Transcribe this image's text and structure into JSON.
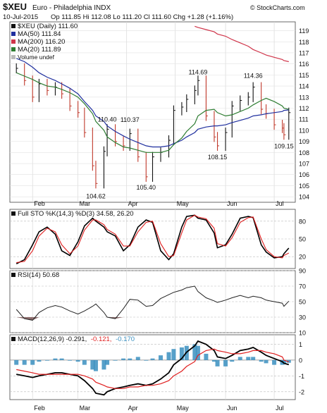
{
  "header": {
    "symbol": "$XEU",
    "name": "Euro - Philadelphia INDX",
    "date": "10-Jul-2015",
    "quote": "Op 111.85  Hi 112.08  Lo 111.20  Cl 111.60  Chg +1.28 (+1.16%)",
    "watermark": "© StockCharts.com"
  },
  "legend": {
    "price": "$XEU (Daily) 111.60",
    "ma50": "MA(50) 111.84",
    "ma200": "MA(200) 116.20",
    "ma20": "MA(20) 111.89",
    "volume": "Volume undef"
  },
  "indicators": {
    "sto": "Full STO %K(14,3) %D(3) 34.58, 26.20",
    "rsi": "RSI(14) 50.68",
    "macd_label": "MACD(12,26,9) -0.291,",
    "macd_signal": "-0.121,",
    "macd_hist": "-0.170"
  },
  "months": [
    "Feb",
    "Mar",
    "Apr",
    "May",
    "Jun",
    "Jul"
  ],
  "colors": {
    "price_bar_up": "#111111",
    "price_bar_down": "#c0392b",
    "ma50": "#1f2f9e",
    "ma200": "#d0354a",
    "ma20": "#2e7d32",
    "sto_k": "#000000",
    "sto_d": "#e02020",
    "rsi_fill": "#8b6b6b",
    "macd_hist": "#3a8fc0",
    "macd_signal": "#e02020"
  },
  "chart_data": [
    {
      "type": "line",
      "title": "$XEU (Daily) 111.60",
      "y_ticks": [
        104,
        105,
        106,
        107,
        108,
        109,
        110,
        111,
        112,
        113,
        114,
        115,
        116,
        117,
        118,
        119
      ],
      "ylim": [
        103.5,
        119.8
      ],
      "annotations": [
        {
          "label": "104.62",
          "x": "2015-03-13",
          "y": 104.62
        },
        {
          "label": "110.40",
          "x": "2015-03-20",
          "y": 110.4
        },
        {
          "label": "110.37",
          "x": "2015-04-03",
          "y": 110.37
        },
        {
          "label": "105.40",
          "x": "2015-04-13",
          "y": 105.4
        },
        {
          "label": "114.69",
          "x": "2015-05-15",
          "y": 114.69
        },
        {
          "label": "108.15",
          "x": "2015-05-27",
          "y": 108.15
        },
        {
          "label": "114.36",
          "x": "2015-06-18",
          "y": 114.36
        },
        {
          "label": "109.15",
          "x": "2015-07-07",
          "y": 109.15
        }
      ],
      "x": [
        "2015-01-23",
        "2015-01-28",
        "2015-02-02",
        "2015-02-06",
        "2015-02-11",
        "2015-02-16",
        "2015-02-20",
        "2015-02-25",
        "2015-03-02",
        "2015-03-06",
        "2015-03-11",
        "2015-03-13",
        "2015-03-18",
        "2015-03-20",
        "2015-03-25",
        "2015-03-30",
        "2015-04-03",
        "2015-04-08",
        "2015-04-13",
        "2015-04-17",
        "2015-04-22",
        "2015-04-27",
        "2015-04-30",
        "2015-05-05",
        "2015-05-08",
        "2015-05-13",
        "2015-05-15",
        "2015-05-20",
        "2015-05-25",
        "2015-05-27",
        "2015-06-01",
        "2015-06-05",
        "2015-06-10",
        "2015-06-15",
        "2015-06-18",
        "2015-06-23",
        "2015-06-26",
        "2015-07-01",
        "2015-07-06",
        "2015-07-07",
        "2015-07-10"
      ],
      "series": [
        {
          "name": "$XEU (Daily) 111.60",
          "values": [
            115.6,
            114.5,
            113.0,
            114.2,
            113.6,
            113.9,
            113.3,
            112.2,
            111.6,
            109.8,
            106.8,
            105.2,
            108.1,
            110.1,
            109.0,
            108.6,
            109.7,
            107.6,
            105.8,
            107.6,
            108.0,
            109.1,
            111.8,
            112.1,
            112.8,
            113.6,
            114.5,
            111.3,
            109.4,
            108.6,
            109.8,
            112.2,
            112.7,
            113.0,
            113.9,
            111.9,
            111.5,
            110.5,
            110.2,
            109.6,
            111.6
          ]
        },
        {
          "name": "MA(50) 111.84",
          "values": [
            116.5,
            116.2,
            115.7,
            115.2,
            114.8,
            114.5,
            114.2,
            113.8,
            113.3,
            112.6,
            111.8,
            111.3,
            110.8,
            110.4,
            109.9,
            109.5,
            109.2,
            108.9,
            108.6,
            108.5,
            108.5,
            108.6,
            108.8,
            109.1,
            109.4,
            109.8,
            110.1,
            110.3,
            110.4,
            110.4,
            110.5,
            110.7,
            110.9,
            111.1,
            111.3,
            111.4,
            111.5,
            111.6,
            111.7,
            111.8,
            111.84
          ]
        },
        {
          "name": "MA(200) 116.20",
          "values": [
            null,
            null,
            null,
            null,
            null,
            null,
            null,
            null,
            null,
            null,
            null,
            null,
            null,
            null,
            null,
            null,
            null,
            null,
            null,
            null,
            null,
            null,
            null,
            null,
            null,
            119.4,
            119.3,
            119.1,
            118.9,
            118.7,
            118.5,
            118.2,
            117.9,
            117.6,
            117.3,
            117.0,
            116.8,
            116.6,
            116.4,
            116.3,
            116.2
          ]
        },
        {
          "name": "MA(20) 111.89",
          "values": [
            115.2,
            114.9,
            114.6,
            114.3,
            114.0,
            113.9,
            113.7,
            113.4,
            113.0,
            112.4,
            111.5,
            110.8,
            110.0,
            109.4,
            108.9,
            108.5,
            108.4,
            108.2,
            108.0,
            108.0,
            108.0,
            108.2,
            108.7,
            109.3,
            109.9,
            110.6,
            111.3,
            111.8,
            111.9,
            111.6,
            111.3,
            111.4,
            111.7,
            112.0,
            112.3,
            112.7,
            112.9,
            112.6,
            112.2,
            112.0,
            111.89
          ]
        }
      ]
    },
    {
      "type": "line",
      "title": "Full STO %K(14,3) %D(3) 34.58, 26.20",
      "y_ticks": [
        20,
        50,
        80
      ],
      "ylim": [
        0,
        100
      ],
      "x": [
        "2015-01-23",
        "2015-01-28",
        "2015-02-02",
        "2015-02-06",
        "2015-02-11",
        "2015-02-16",
        "2015-02-20",
        "2015-02-25",
        "2015-03-02",
        "2015-03-06",
        "2015-03-11",
        "2015-03-13",
        "2015-03-18",
        "2015-03-20",
        "2015-03-25",
        "2015-03-30",
        "2015-04-03",
        "2015-04-08",
        "2015-04-13",
        "2015-04-17",
        "2015-04-22",
        "2015-04-27",
        "2015-04-30",
        "2015-05-05",
        "2015-05-08",
        "2015-05-13",
        "2015-05-15",
        "2015-05-20",
        "2015-05-25",
        "2015-05-27",
        "2015-06-01",
        "2015-06-05",
        "2015-06-10",
        "2015-06-15",
        "2015-06-18",
        "2015-06-23",
        "2015-06-26",
        "2015-07-01",
        "2015-07-06",
        "2015-07-07",
        "2015-07-10"
      ],
      "series": [
        {
          "name": "%K",
          "values": [
            8,
            15,
            40,
            62,
            70,
            58,
            30,
            22,
            45,
            72,
            85,
            80,
            70,
            62,
            55,
            30,
            40,
            70,
            82,
            78,
            30,
            15,
            25,
            70,
            88,
            90,
            85,
            82,
            60,
            35,
            40,
            58,
            85,
            88,
            86,
            40,
            28,
            18,
            20,
            25,
            34.58
          ]
        },
        {
          "name": "%D",
          "values": [
            10,
            12,
            30,
            55,
            68,
            62,
            40,
            25,
            38,
            65,
            82,
            82,
            74,
            66,
            58,
            38,
            38,
            62,
            78,
            80,
            42,
            20,
            22,
            60,
            82,
            90,
            87,
            84,
            68,
            42,
            38,
            52,
            78,
            86,
            87,
            50,
            32,
            20,
            18,
            22,
            26.2
          ]
        }
      ]
    },
    {
      "type": "area",
      "title": "RSI(14) 50.68",
      "y_ticks": [
        10,
        30,
        50,
        70,
        90
      ],
      "ylim": [
        10,
        90
      ],
      "x": [
        "2015-01-23",
        "2015-01-28",
        "2015-02-02",
        "2015-02-06",
        "2015-02-11",
        "2015-02-16",
        "2015-02-20",
        "2015-02-25",
        "2015-03-02",
        "2015-03-06",
        "2015-03-11",
        "2015-03-13",
        "2015-03-18",
        "2015-03-20",
        "2015-03-25",
        "2015-03-30",
        "2015-04-03",
        "2015-04-08",
        "2015-04-13",
        "2015-04-17",
        "2015-04-22",
        "2015-04-27",
        "2015-04-30",
        "2015-05-05",
        "2015-05-08",
        "2015-05-13",
        "2015-05-15",
        "2015-05-20",
        "2015-05-25",
        "2015-05-27",
        "2015-06-01",
        "2015-06-05",
        "2015-06-10",
        "2015-06-15",
        "2015-06-18",
        "2015-06-23",
        "2015-06-26",
        "2015-07-01",
        "2015-07-06",
        "2015-07-07",
        "2015-07-10"
      ],
      "series": [
        {
          "name": "RSI(14) 50.68",
          "values": [
            40,
            28,
            26,
            36,
            42,
            45,
            43,
            38,
            34,
            38,
            44,
            47,
            36,
            30,
            28,
            41,
            53,
            52,
            44,
            45,
            54,
            59,
            62,
            65,
            68,
            70,
            63,
            55,
            51,
            49,
            52,
            55,
            58,
            55,
            57,
            55,
            52,
            50,
            48,
            44,
            50.68
          ]
        }
      ]
    },
    {
      "type": "line",
      "title": "MACD(12,26,9) -0.291, -0.121, -0.170",
      "y_ticks": [
        -2,
        -1,
        0,
        1
      ],
      "ylim": [
        -2.5,
        1.6
      ],
      "x": [
        "2015-01-23",
        "2015-01-28",
        "2015-02-02",
        "2015-02-06",
        "2015-02-11",
        "2015-02-16",
        "2015-02-20",
        "2015-02-25",
        "2015-03-02",
        "2015-03-06",
        "2015-03-11",
        "2015-03-13",
        "2015-03-18",
        "2015-03-20",
        "2015-03-25",
        "2015-03-30",
        "2015-04-03",
        "2015-04-08",
        "2015-04-13",
        "2015-04-17",
        "2015-04-22",
        "2015-04-27",
        "2015-04-30",
        "2015-05-05",
        "2015-05-08",
        "2015-05-13",
        "2015-05-15",
        "2015-05-20",
        "2015-05-25",
        "2015-05-27",
        "2015-06-01",
        "2015-06-05",
        "2015-06-10",
        "2015-06-15",
        "2015-06-18",
        "2015-06-23",
        "2015-06-26",
        "2015-07-01",
        "2015-07-06",
        "2015-07-07",
        "2015-07-10"
      ],
      "series": [
        {
          "name": "MACD",
          "values": [
            -0.9,
            -1.0,
            -1.1,
            -1.0,
            -0.9,
            -0.8,
            -0.8,
            -0.9,
            -1.0,
            -1.3,
            -1.8,
            -2.1,
            -2.2,
            -2.0,
            -1.8,
            -1.7,
            -1.6,
            -1.5,
            -1.6,
            -1.5,
            -1.2,
            -0.8,
            -0.3,
            0.1,
            0.5,
            0.9,
            1.2,
            1.0,
            0.6,
            0.2,
            0.1,
            0.3,
            0.6,
            0.7,
            0.8,
            0.5,
            0.3,
            0.1,
            -0.1,
            -0.2,
            -0.291
          ]
        },
        {
          "name": "Signal",
          "values": [
            -0.6,
            -0.7,
            -0.8,
            -0.9,
            -0.9,
            -0.9,
            -0.9,
            -0.9,
            -0.9,
            -1.0,
            -1.2,
            -1.4,
            -1.6,
            -1.7,
            -1.8,
            -1.8,
            -1.7,
            -1.7,
            -1.6,
            -1.6,
            -1.5,
            -1.3,
            -1.0,
            -0.7,
            -0.4,
            -0.1,
            0.3,
            0.6,
            0.7,
            0.6,
            0.5,
            0.4,
            0.4,
            0.5,
            0.6,
            0.6,
            0.5,
            0.4,
            0.2,
            0.0,
            -0.121
          ]
        },
        {
          "name": "Histogram",
          "values": [
            -0.3,
            -0.3,
            -0.3,
            -0.1,
            0.0,
            0.1,
            0.1,
            0.0,
            -0.1,
            -0.3,
            -0.6,
            -0.7,
            -0.6,
            -0.3,
            0.0,
            0.1,
            0.1,
            0.2,
            0.0,
            0.1,
            0.3,
            0.5,
            0.7,
            0.8,
            0.9,
            1.0,
            0.9,
            0.4,
            -0.1,
            -0.4,
            -0.4,
            -0.1,
            0.2,
            0.2,
            0.2,
            -0.1,
            -0.2,
            -0.3,
            -0.3,
            -0.2,
            -0.17
          ]
        }
      ]
    }
  ]
}
